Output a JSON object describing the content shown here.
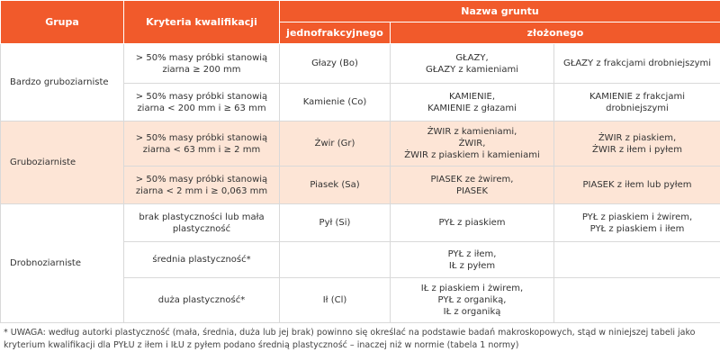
{
  "header": {
    "group": "Grupa",
    "criteria": "Kryteria kwalifikacji",
    "soil_name": "Nazwa gruntu",
    "single": "jednofrakcyjnego",
    "composite": "złożonego"
  },
  "groups": [
    {
      "name": "Bardzo gruboziarniste",
      "rows": [
        {
          "criteria": "> 50% masy próbki stanowią\nziarna ≥ 200 mm",
          "single": "Głazy (Bo)",
          "composite": [
            "GŁAZY,\nGŁAZY z kamieniami",
            "GŁAZY z frakcjami drobniejszymi"
          ]
        },
        {
          "criteria": "> 50% masy próbki stanowią\nziarna < 200 mm i ≥ 63 mm",
          "single": "Kamienie (Co)",
          "composite": [
            "KAMIENIE,\nKAMIENIE z głazami",
            "KAMIENIE z frakcjami\ndrobniejszymi"
          ]
        }
      ]
    },
    {
      "name": "Gruboziarniste",
      "rows": [
        {
          "criteria": "> 50% masy próbki stanowią\nziarna < 63 mm i ≥ 2 mm",
          "single": "Żwir (Gr)",
          "composite": [
            "ŻWIR z kamieniami,\nŻWIR,\nŻWIR z piaskiem i kamieniami",
            "ŻWIR z piaskiem,\nŻWIR z iłem i pyłem"
          ]
        },
        {
          "criteria": "> 50% masy próbki stanowią\nziarna < 2 mm i ≥ 0,063 mm",
          "single": "Piasek (Sa)",
          "composite": [
            "PIASEK ze żwirem,\nPIASEK",
            "PIASEK z iłem lub pyłem"
          ]
        }
      ]
    },
    {
      "name": "Drobnoziarniste",
      "rows": [
        {
          "criteria": "brak plastyczności lub mała\nplastyczność",
          "single": "Pył (Si)",
          "composite": [
            "PYŁ z piaskiem",
            "PYŁ z piaskiem i żwirem,\nPYŁ z piaskiem i iłem"
          ]
        },
        {
          "criteria": "średnia plastyczność*",
          "single": null,
          "composite": [
            "PYŁ z iłem,\nIŁ z pyłem",
            null
          ]
        },
        {
          "criteria": "duża plastyczność*",
          "single": "Ił (Cl)",
          "composite": [
            "IŁ z piaskiem i żwirem,\nPYŁ z organiką,\nIŁ z organiką",
            null
          ]
        }
      ]
    }
  ],
  "footnote": "* UWAGA: według autorki plastyczność (mała, średnia, duża lub jej brak) powinno się określać na podstawie badań makroskopowych, stąd w niniejszej tabeli jako kryterium kwalifikacji dla PYŁU z iłem i IŁU z pyłem podano średnią plastyczność – inaczej niż w normie (tabela 1 normy)"
}
